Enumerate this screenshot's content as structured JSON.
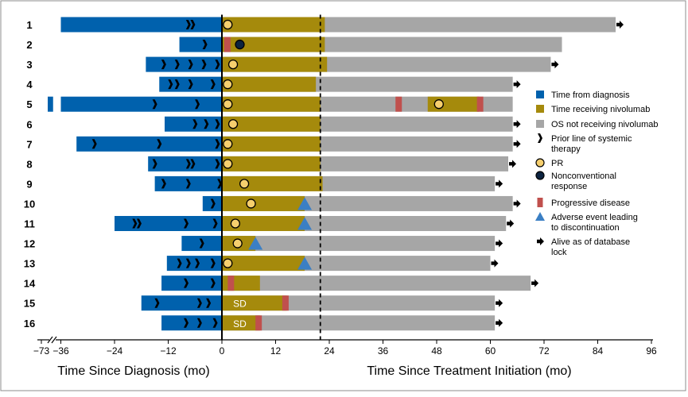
{
  "colors": {
    "diagnosis": "#0061ad",
    "nivolumab": "#a58a0c",
    "os": "#a6a6a6",
    "progressive": "#c0504d",
    "adverse": "#3b7fc4",
    "pr": "#f6cf6e",
    "nonconventional": "#0c2340",
    "arrow": "#000000",
    "frame": "#8c8c8c"
  },
  "chart_data": {
    "type": "bar",
    "orientation": "horizontal swimmer plot",
    "x_axis": {
      "ticks_left": [
        {
          "label": "−73",
          "value": -73
        },
        {
          "label": "−36",
          "value": -36
        },
        {
          "label": "−24",
          "value": -24
        },
        {
          "label": "−12",
          "value": -12
        }
      ],
      "ticks_right": [
        0,
        12,
        24,
        36,
        48,
        60,
        72,
        84,
        96
      ],
      "label_left": "Time Since Diagnosis (mo)",
      "label_right": "Time Since Treatment Initiation (mo)",
      "range": [
        -36,
        96
      ],
      "axis_break": true
    },
    "reference_line_x": 22,
    "patients": [
      {
        "id": "1",
        "dx_start": -36,
        "prior": [
          -7.5,
          -6.5
        ],
        "niv": [
          0,
          23
        ],
        "os_end": 88,
        "alive": true,
        "pr": 1.3
      },
      {
        "id": "2",
        "dx_start": -9.5,
        "prior": [
          -3.8
        ],
        "niv": [
          0,
          23
        ],
        "os_end": 76,
        "alive": false,
        "pd": [
          0.5
        ],
        "nc": 4
      },
      {
        "id": "3",
        "dx_start": -17,
        "prior": [
          -13,
          -10,
          -7,
          -4,
          -1
        ],
        "niv": [
          0,
          23.5
        ],
        "os_end": 73.5,
        "alive": true,
        "pr": 2.5
      },
      {
        "id": "4",
        "dx_start": -14,
        "prior": [
          -11.5,
          -10,
          -7,
          -2
        ],
        "niv": [
          0,
          21
        ],
        "os_end": 65,
        "alive": true,
        "pr": 1.3
      },
      {
        "id": "5",
        "dx_start": -36,
        "dx_extra": [
          -73,
          -70
        ],
        "prior": [
          -15,
          -5.5
        ],
        "niv": [
          0,
          22
        ],
        "niv2": [
          46,
          57.5
        ],
        "os_end": 65,
        "alive": false,
        "pd": [
          38.8,
          57
        ],
        "pr": 1.3,
        "pr2": 48.5
      },
      {
        "id": "6",
        "dx_start": -12.8,
        "prior": [
          -6,
          -3.5,
          -1
        ],
        "niv": [
          0,
          22
        ],
        "os_end": 65,
        "alive": true,
        "pr": 2.5
      },
      {
        "id": "7",
        "dx_start": -32.5,
        "prior": [
          -28.5,
          -14,
          -1
        ],
        "niv": [
          0,
          22
        ],
        "os_end": 65,
        "alive": true,
        "pr": 1.3
      },
      {
        "id": "8",
        "dx_start": -16.5,
        "prior": [
          -15,
          -7.5,
          -6.5,
          -1
        ],
        "niv": [
          0,
          22
        ],
        "os_end": 64,
        "alive": true,
        "pr": 1.3
      },
      {
        "id": "9",
        "dx_start": -15,
        "prior": [
          -13,
          -7.5,
          -0.5
        ],
        "niv": [
          0,
          22.5
        ],
        "os_end": 61,
        "alive": true,
        "pr": 5
      },
      {
        "id": "10",
        "dx_start": -4.3,
        "prior": [
          -2
        ],
        "niv": [
          0,
          18.5
        ],
        "os_end": 65,
        "alive": true,
        "pr": 6.5,
        "ae": 18.5
      },
      {
        "id": "11",
        "dx_start": -24,
        "prior": [
          -19.5,
          -18.5,
          -8,
          -1.5
        ],
        "niv": [
          0,
          18.5
        ],
        "os_end": 63.5,
        "alive": true,
        "pr": 3,
        "ae": 18.5
      },
      {
        "id": "12",
        "dx_start": -9,
        "prior": [
          -4.5
        ],
        "niv": [
          0,
          7.5
        ],
        "os_end": 61,
        "alive": true,
        "pr": 3.5,
        "ae": 7.5
      },
      {
        "id": "13",
        "dx_start": -12.3,
        "prior": [
          -9.5,
          -7.5,
          -5.5,
          -2
        ],
        "niv": [
          0,
          18.5
        ],
        "os_end": 60,
        "alive": true,
        "pr": 1.3,
        "ae": 18.5
      },
      {
        "id": "14",
        "dx_start": -13.5,
        "prior": [
          -8,
          -2
        ],
        "niv": [
          0,
          8.5
        ],
        "os_end": 69,
        "alive": true,
        "pd": [
          1.3
        ]
      },
      {
        "id": "15",
        "dx_start": -18,
        "prior": [
          -14.5,
          -5,
          -3
        ],
        "niv": [
          0,
          14.5
        ],
        "os_end": 61,
        "alive": true,
        "pd": [
          13.5
        ],
        "sd_label": "SD"
      },
      {
        "id": "16",
        "dx_start": -13.5,
        "prior": [
          -8,
          -5,
          -1.5
        ],
        "niv": [
          0,
          8.5
        ],
        "os_end": 61,
        "alive": true,
        "pd": [
          7.5
        ],
        "sd_label": "SD"
      }
    ],
    "legend": [
      {
        "key": "diagnosis",
        "label": [
          "Time from diagnosis"
        ]
      },
      {
        "key": "nivolumab",
        "label": [
          "Time receiving nivolumab"
        ]
      },
      {
        "key": "os",
        "label": [
          "OS not receiving nivolumab"
        ]
      },
      {
        "key": "prior",
        "label": [
          "Prior line of systemic",
          "therapy"
        ]
      },
      {
        "key": "pr",
        "label": [
          "PR"
        ]
      },
      {
        "key": "nonconventional",
        "label": [
          "Nonconventional",
          "response"
        ]
      },
      {
        "key": "progressive",
        "label": [
          "Progressive disease"
        ]
      },
      {
        "key": "adverse",
        "label": [
          "Adverse event leading",
          "to discontinuation"
        ]
      },
      {
        "key": "alive",
        "label": [
          "Alive as of database",
          "lock"
        ]
      }
    ]
  }
}
